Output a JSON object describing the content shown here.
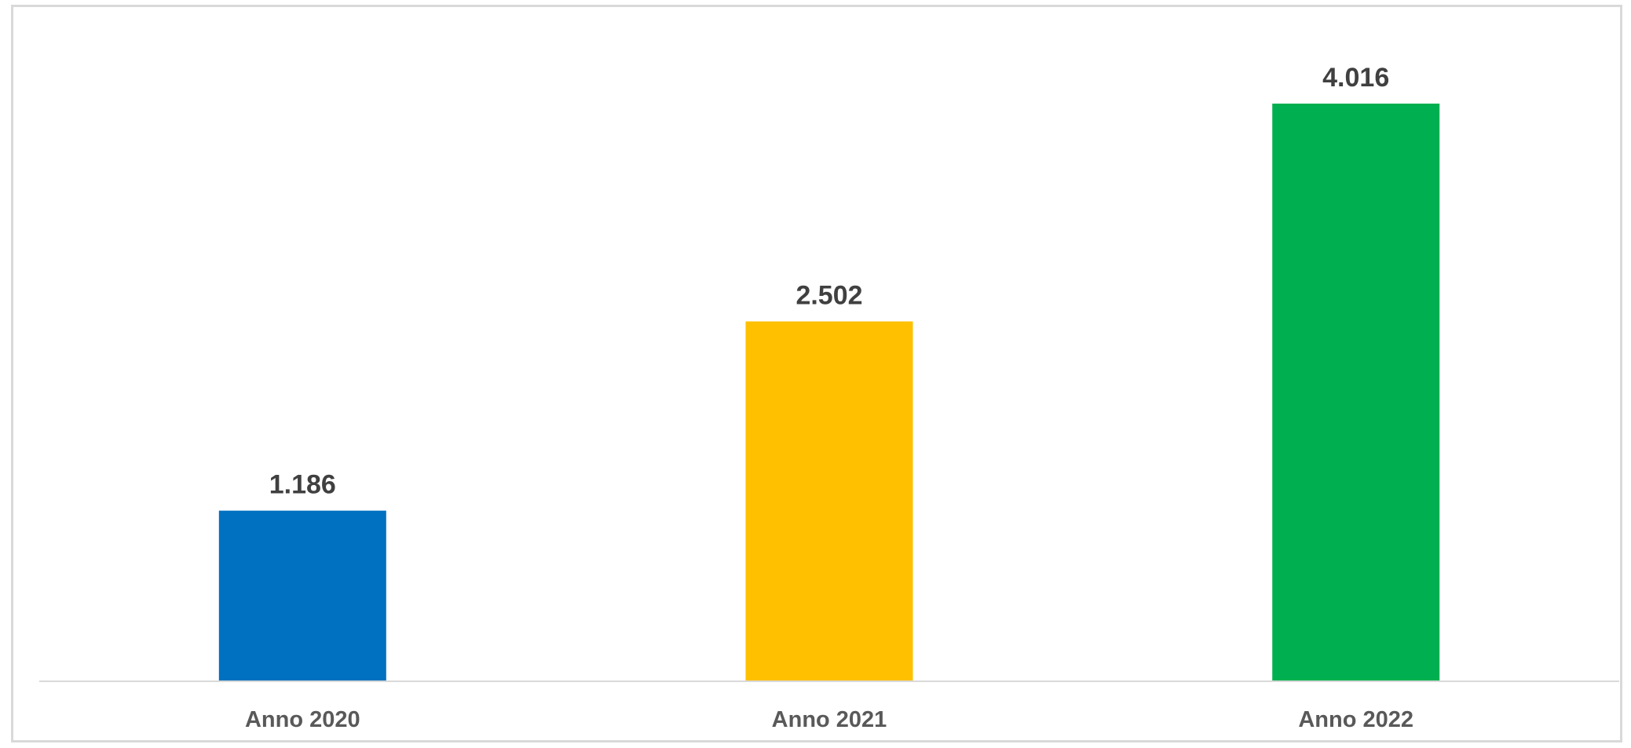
{
  "chart_data": {
    "type": "bar",
    "categories": [
      "Anno 2020",
      "Anno 2021",
      "Anno 2022"
    ],
    "values": [
      1186,
      2502,
      4016
    ],
    "value_labels": [
      "1.186",
      "2.502",
      "4.016"
    ],
    "colors": [
      "#0070C0",
      "#FFC000",
      "#00B050"
    ],
    "title": "",
    "xlabel": "",
    "ylabel": "",
    "ylim": [
      0,
      4500
    ],
    "grid": false,
    "legend": "none"
  }
}
